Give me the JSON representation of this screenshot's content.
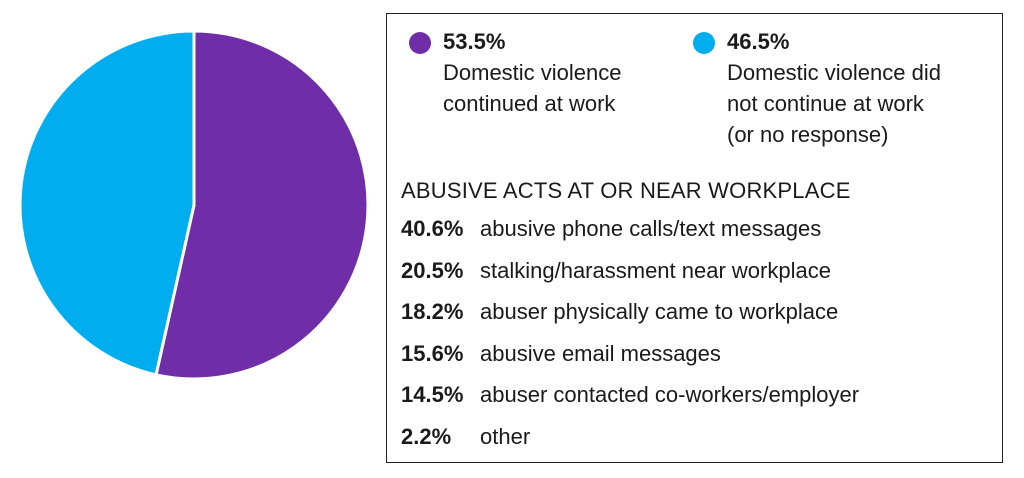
{
  "chart_data": {
    "type": "pie",
    "slices": [
      {
        "value": 53.5,
        "label_pct": "53.5%",
        "label": "Domestic violence\ncontinued at work",
        "color": "#6f2da8"
      },
      {
        "value": 46.5,
        "label_pct": "46.5%",
        "label": "Domestic violence did\nnot continue at work\n(or no response)",
        "color": "#00aeef"
      }
    ],
    "start_angle_deg": 0,
    "direction": "clockwise",
    "separator_color": "#ffffff",
    "legend_position": "right"
  },
  "acts": {
    "title": "ABUSIVE ACTS AT OR NEAR WORKPLACE",
    "items": [
      {
        "pct": "40.6%",
        "label": "abusive phone calls/text messages"
      },
      {
        "pct": "20.5%",
        "label": "stalking/harassment near workplace"
      },
      {
        "pct": "18.2%",
        "label": "abuser physically came to workplace"
      },
      {
        "pct": "15.6%",
        "label": "abusive email messages"
      },
      {
        "pct": "14.5%",
        "label": "abuser contacted co-workers/employer"
      },
      {
        "pct": "2.2%",
        "label": "other"
      }
    ]
  }
}
